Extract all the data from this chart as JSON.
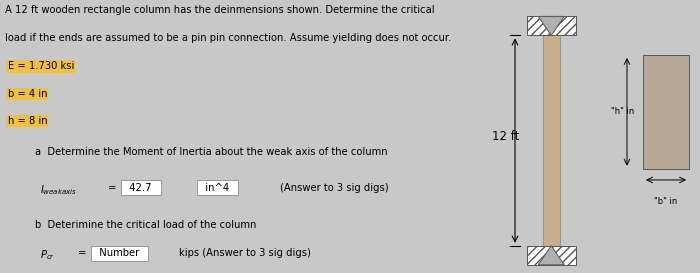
{
  "title_line1": "A 12 ft wooden rectangle column has the deinmensions shown. Determine the critical",
  "title_line2": "load if the ends are assumed to be a pin pin connection. Assume yielding does not occur.",
  "param_E": "E = 1.730 ksi",
  "param_b": "b = 4 in",
  "param_h": "h = 8 in",
  "part_a_label": "a  Determine the Moment of Inertia about the weak axis of the column",
  "I_value": "42.7",
  "I_units": "in^4",
  "I_answer_hint": "(Answer to 3 sig digs)",
  "part_b_label": "b  Deterimine the critical load of the column",
  "P_placeholder": "Number",
  "P_units": "kips (Answer to 3 sig digs)",
  "col_height_label": "12 ft",
  "cross_h_label": "\"h\" in",
  "cross_b_label": "\"b\" in",
  "highlight_color": "#f0c040",
  "col_color": "#c8ad8a",
  "fig_bg": "#c8c8c8",
  "text_bg": "#d8d8d8"
}
